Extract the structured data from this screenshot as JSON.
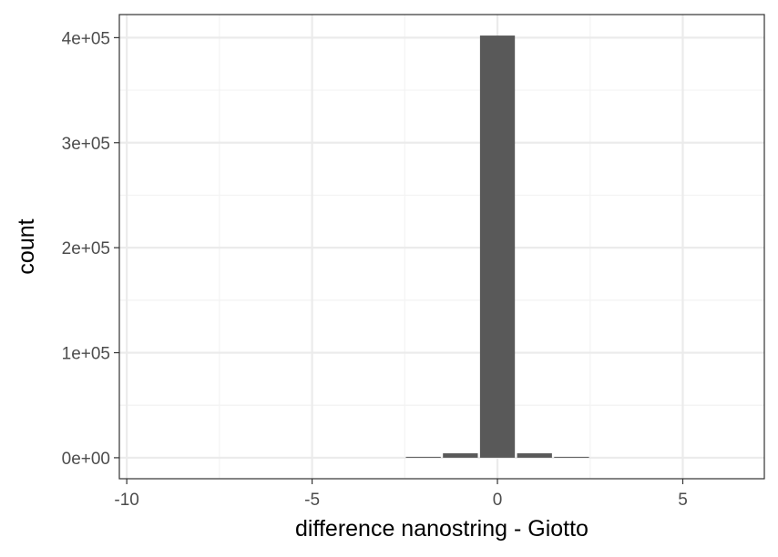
{
  "chart_data": {
    "type": "bar",
    "xlabel": "difference nanostring - Giotto",
    "ylabel": "count",
    "xlim": [
      -10.2,
      7.2
    ],
    "ylim": [
      -20000,
      422000
    ],
    "x_ticks": [
      -10,
      -5,
      0,
      5
    ],
    "x_tick_labels": [
      "-10",
      "-5",
      "0",
      "5"
    ],
    "y_ticks": [
      0,
      100000,
      200000,
      300000,
      400000
    ],
    "y_tick_labels": [
      "0e+00",
      "1e+05",
      "2e+05",
      "3e+05",
      "4e+05"
    ],
    "bin_width": 1,
    "bins": [
      {
        "x": -2,
        "count": 600
      },
      {
        "x": -1,
        "count": 4200
      },
      {
        "x": 0,
        "count": 402000
      },
      {
        "x": 1,
        "count": 4200
      },
      {
        "x": 2,
        "count": 600
      }
    ],
    "grid": true,
    "colors": {
      "bar": "#595959",
      "grid_major": "#ebebeb",
      "grid_minor": "#f3f3f3",
      "panel_border": "#333333"
    }
  }
}
